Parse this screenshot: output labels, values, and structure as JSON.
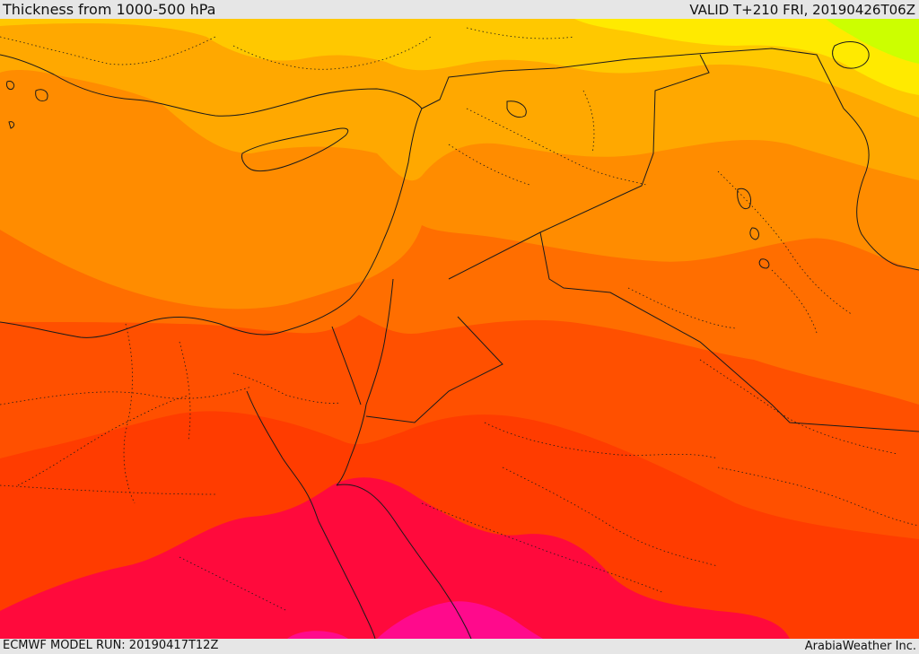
{
  "header": {
    "title": "Thickness from 1000-500 hPa",
    "valid": "VALID T+210 FRI, 20190426T06Z"
  },
  "footer": {
    "model_run": "ECMWF MODEL RUN: 20190417T12Z",
    "credit": "ArabiaWeather Inc."
  },
  "colors": {
    "band_1": "#ccff00",
    "band_2": "#ffea00",
    "band_3": "#ffc800",
    "band_4": "#ffa800",
    "band_5": "#ff8c00",
    "band_6": "#ff6e00",
    "band_7": "#ff5000",
    "band_8": "#ff3c00",
    "band_9": "#ff0a3c",
    "band_10": "#ff0a8c"
  }
}
